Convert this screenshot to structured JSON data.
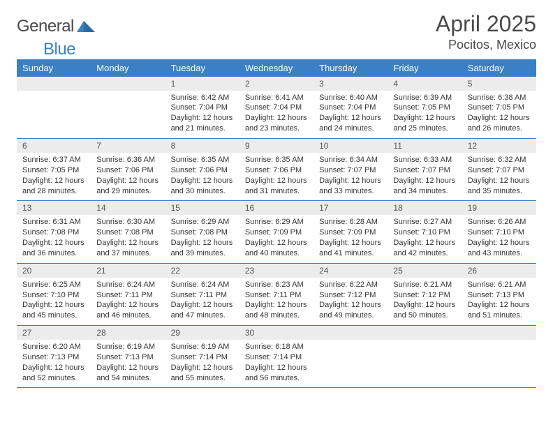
{
  "brand": {
    "word1": "General",
    "word2": "Blue"
  },
  "header": {
    "month": "April 2025",
    "location": "Pocitos, Mexico"
  },
  "colors": {
    "header_bg": "#3b7fc4",
    "header_fg": "#ffffff",
    "daynum_bg": "#ececec",
    "daynum_fg": "#555555",
    "cell_border": "#3b7fc4",
    "text": "#333333",
    "title": "#4a4a4a"
  },
  "daysOfWeek": [
    "Sunday",
    "Monday",
    "Tuesday",
    "Wednesday",
    "Thursday",
    "Friday",
    "Saturday"
  ],
  "weeks": [
    [
      null,
      null,
      {
        "n": "1",
        "lines": [
          "Sunrise: 6:42 AM",
          "Sunset: 7:04 PM",
          "Daylight: 12 hours",
          "and 21 minutes."
        ]
      },
      {
        "n": "2",
        "lines": [
          "Sunrise: 6:41 AM",
          "Sunset: 7:04 PM",
          "Daylight: 12 hours",
          "and 23 minutes."
        ]
      },
      {
        "n": "3",
        "lines": [
          "Sunrise: 6:40 AM",
          "Sunset: 7:04 PM",
          "Daylight: 12 hours",
          "and 24 minutes."
        ]
      },
      {
        "n": "4",
        "lines": [
          "Sunrise: 6:39 AM",
          "Sunset: 7:05 PM",
          "Daylight: 12 hours",
          "and 25 minutes."
        ]
      },
      {
        "n": "5",
        "lines": [
          "Sunrise: 6:38 AM",
          "Sunset: 7:05 PM",
          "Daylight: 12 hours",
          "and 26 minutes."
        ]
      }
    ],
    [
      {
        "n": "6",
        "lines": [
          "Sunrise: 6:37 AM",
          "Sunset: 7:05 PM",
          "Daylight: 12 hours",
          "and 28 minutes."
        ]
      },
      {
        "n": "7",
        "lines": [
          "Sunrise: 6:36 AM",
          "Sunset: 7:06 PM",
          "Daylight: 12 hours",
          "and 29 minutes."
        ]
      },
      {
        "n": "8",
        "lines": [
          "Sunrise: 6:35 AM",
          "Sunset: 7:06 PM",
          "Daylight: 12 hours",
          "and 30 minutes."
        ]
      },
      {
        "n": "9",
        "lines": [
          "Sunrise: 6:35 AM",
          "Sunset: 7:06 PM",
          "Daylight: 12 hours",
          "and 31 minutes."
        ]
      },
      {
        "n": "10",
        "lines": [
          "Sunrise: 6:34 AM",
          "Sunset: 7:07 PM",
          "Daylight: 12 hours",
          "and 33 minutes."
        ]
      },
      {
        "n": "11",
        "lines": [
          "Sunrise: 6:33 AM",
          "Sunset: 7:07 PM",
          "Daylight: 12 hours",
          "and 34 minutes."
        ]
      },
      {
        "n": "12",
        "lines": [
          "Sunrise: 6:32 AM",
          "Sunset: 7:07 PM",
          "Daylight: 12 hours",
          "and 35 minutes."
        ]
      }
    ],
    [
      {
        "n": "13",
        "lines": [
          "Sunrise: 6:31 AM",
          "Sunset: 7:08 PM",
          "Daylight: 12 hours",
          "and 36 minutes."
        ]
      },
      {
        "n": "14",
        "lines": [
          "Sunrise: 6:30 AM",
          "Sunset: 7:08 PM",
          "Daylight: 12 hours",
          "and 37 minutes."
        ]
      },
      {
        "n": "15",
        "lines": [
          "Sunrise: 6:29 AM",
          "Sunset: 7:08 PM",
          "Daylight: 12 hours",
          "and 39 minutes."
        ]
      },
      {
        "n": "16",
        "lines": [
          "Sunrise: 6:29 AM",
          "Sunset: 7:09 PM",
          "Daylight: 12 hours",
          "and 40 minutes."
        ]
      },
      {
        "n": "17",
        "lines": [
          "Sunrise: 6:28 AM",
          "Sunset: 7:09 PM",
          "Daylight: 12 hours",
          "and 41 minutes."
        ]
      },
      {
        "n": "18",
        "lines": [
          "Sunrise: 6:27 AM",
          "Sunset: 7:10 PM",
          "Daylight: 12 hours",
          "and 42 minutes."
        ]
      },
      {
        "n": "19",
        "lines": [
          "Sunrise: 6:26 AM",
          "Sunset: 7:10 PM",
          "Daylight: 12 hours",
          "and 43 minutes."
        ]
      }
    ],
    [
      {
        "n": "20",
        "lines": [
          "Sunrise: 6:25 AM",
          "Sunset: 7:10 PM",
          "Daylight: 12 hours",
          "and 45 minutes."
        ]
      },
      {
        "n": "21",
        "lines": [
          "Sunrise: 6:24 AM",
          "Sunset: 7:11 PM",
          "Daylight: 12 hours",
          "and 46 minutes."
        ]
      },
      {
        "n": "22",
        "lines": [
          "Sunrise: 6:24 AM",
          "Sunset: 7:11 PM",
          "Daylight: 12 hours",
          "and 47 minutes."
        ]
      },
      {
        "n": "23",
        "lines": [
          "Sunrise: 6:23 AM",
          "Sunset: 7:11 PM",
          "Daylight: 12 hours",
          "and 48 minutes."
        ]
      },
      {
        "n": "24",
        "lines": [
          "Sunrise: 6:22 AM",
          "Sunset: 7:12 PM",
          "Daylight: 12 hours",
          "and 49 minutes."
        ]
      },
      {
        "n": "25",
        "lines": [
          "Sunrise: 6:21 AM",
          "Sunset: 7:12 PM",
          "Daylight: 12 hours",
          "and 50 minutes."
        ]
      },
      {
        "n": "26",
        "lines": [
          "Sunrise: 6:21 AM",
          "Sunset: 7:13 PM",
          "Daylight: 12 hours",
          "and 51 minutes."
        ]
      }
    ],
    [
      {
        "n": "27",
        "lines": [
          "Sunrise: 6:20 AM",
          "Sunset: 7:13 PM",
          "Daylight: 12 hours",
          "and 52 minutes."
        ]
      },
      {
        "n": "28",
        "lines": [
          "Sunrise: 6:19 AM",
          "Sunset: 7:13 PM",
          "Daylight: 12 hours",
          "and 54 minutes."
        ]
      },
      {
        "n": "29",
        "lines": [
          "Sunrise: 6:19 AM",
          "Sunset: 7:14 PM",
          "Daylight: 12 hours",
          "and 55 minutes."
        ]
      },
      {
        "n": "30",
        "lines": [
          "Sunrise: 6:18 AM",
          "Sunset: 7:14 PM",
          "Daylight: 12 hours",
          "and 56 minutes."
        ]
      },
      null,
      null,
      null
    ]
  ]
}
